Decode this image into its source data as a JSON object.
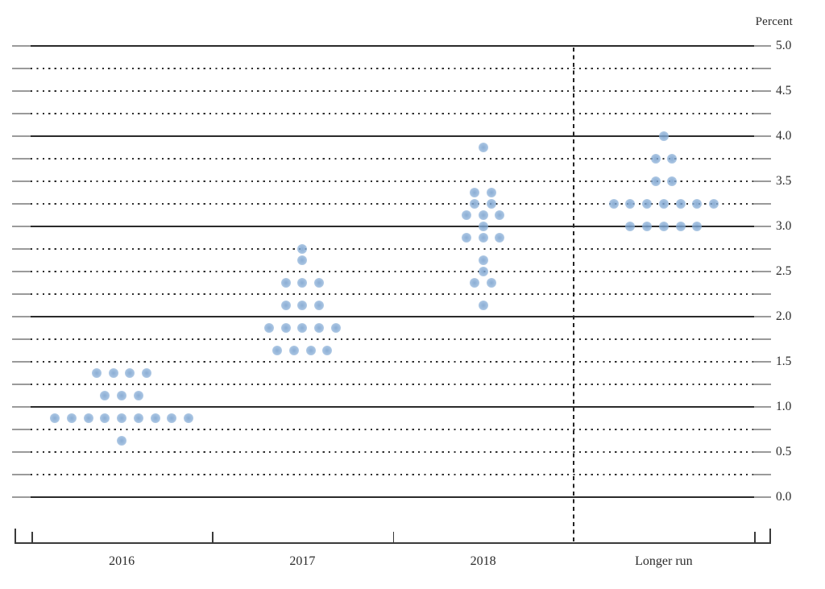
{
  "chart_data": {
    "type": "scatter",
    "subtype": "fomc-dot-plot",
    "title": "",
    "xlabel": "",
    "ylabel": "Percent",
    "ylim": [
      0.0,
      5.0
    ],
    "gridline_interval": 0.25,
    "solid_gridline_interval": 1.0,
    "ytick_interval": 0.5,
    "ytick_labels": [
      "0.0",
      "0.5",
      "1.0",
      "1.5",
      "2.0",
      "2.5",
      "3.0",
      "3.5",
      "4.0",
      "4.5",
      "5.0"
    ],
    "categories": [
      "2016",
      "2017",
      "2018",
      "Longer run"
    ],
    "separator_before_category": "Longer run",
    "grid": true,
    "legend_position": "none",
    "dot_color": "#8aafd7",
    "series": [
      {
        "category": "2016",
        "dots": [
          {
            "value": 1.375,
            "count": 4
          },
          {
            "value": 1.125,
            "count": 3
          },
          {
            "value": 0.875,
            "count": 9
          },
          {
            "value": 0.625,
            "count": 1
          }
        ]
      },
      {
        "category": "2017",
        "dots": [
          {
            "value": 2.75,
            "count": 1
          },
          {
            "value": 2.625,
            "count": 1
          },
          {
            "value": 2.375,
            "count": 3
          },
          {
            "value": 2.125,
            "count": 3
          },
          {
            "value": 1.875,
            "count": 5
          },
          {
            "value": 1.625,
            "count": 4
          }
        ]
      },
      {
        "category": "2018",
        "dots": [
          {
            "value": 3.875,
            "count": 1
          },
          {
            "value": 3.375,
            "count": 2
          },
          {
            "value": 3.25,
            "count": 2
          },
          {
            "value": 3.125,
            "count": 3
          },
          {
            "value": 3.0,
            "count": 1
          },
          {
            "value": 2.875,
            "count": 3
          },
          {
            "value": 2.625,
            "count": 1
          },
          {
            "value": 2.5,
            "count": 1
          },
          {
            "value": 2.375,
            "count": 2
          },
          {
            "value": 2.125,
            "count": 1
          }
        ]
      },
      {
        "category": "Longer run",
        "dots": [
          {
            "value": 4.0,
            "count": 1
          },
          {
            "value": 3.75,
            "count": 2
          },
          {
            "value": 3.5,
            "count": 2
          },
          {
            "value": 3.25,
            "count": 7
          },
          {
            "value": 3.0,
            "count": 5
          }
        ]
      }
    ]
  }
}
